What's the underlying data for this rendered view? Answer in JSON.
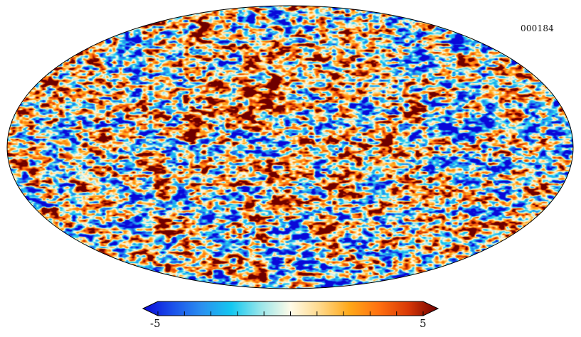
{
  "map": {
    "projection": "mollweide",
    "label": "000184",
    "colormap": [
      "#0a08d8",
      "#1a50ea",
      "#2a90f0",
      "#14c8f0",
      "#9ae6ea",
      "#fffbe8",
      "#ffd88a",
      "#ffa818",
      "#ff7010",
      "#d83806",
      "#6e0000"
    ]
  },
  "colorbar": {
    "min_label": "-5",
    "max_label": "5",
    "min": -5,
    "max": 5,
    "ticks": [
      -5,
      -4,
      -3,
      -2,
      -1,
      0,
      1,
      2,
      3,
      4,
      5
    ]
  }
}
